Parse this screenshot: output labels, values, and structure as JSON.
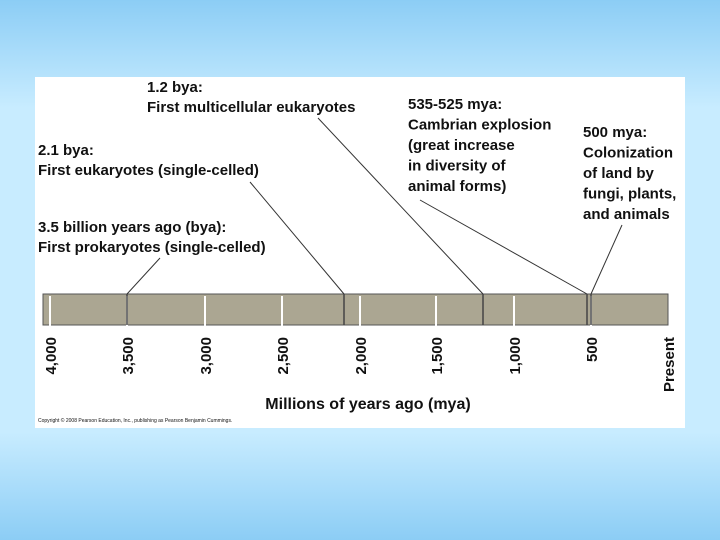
{
  "events": [
    {
      "lines": [
        "3.5 billion years ago (bya):",
        "First prokaryotes (single-celled)"
      ]
    },
    {
      "lines": [
        "2.1 bya:",
        "First eukaryotes (single-celled)"
      ]
    },
    {
      "lines": [
        "1.2 bya:",
        "First multicellular eukaryotes"
      ]
    },
    {
      "lines": [
        "535-525 mya:",
        "Cambrian explosion",
        "(great increase",
        "in diversity of",
        "animal forms)"
      ]
    },
    {
      "lines": [
        "500 mya:",
        "Colonization",
        "of land by",
        "fungi, plants,",
        "and animals"
      ]
    }
  ],
  "ticks": [
    "4,000",
    "3,500",
    "3,000",
    "2,500",
    "2,000",
    "1,500",
    "1,000",
    "500",
    "Present"
  ],
  "axis_label": "Millions of years ago (mya)",
  "copyright": "Copyright © 2008 Pearson Education, Inc., publishing as Pearson Benjamin Cummings."
}
